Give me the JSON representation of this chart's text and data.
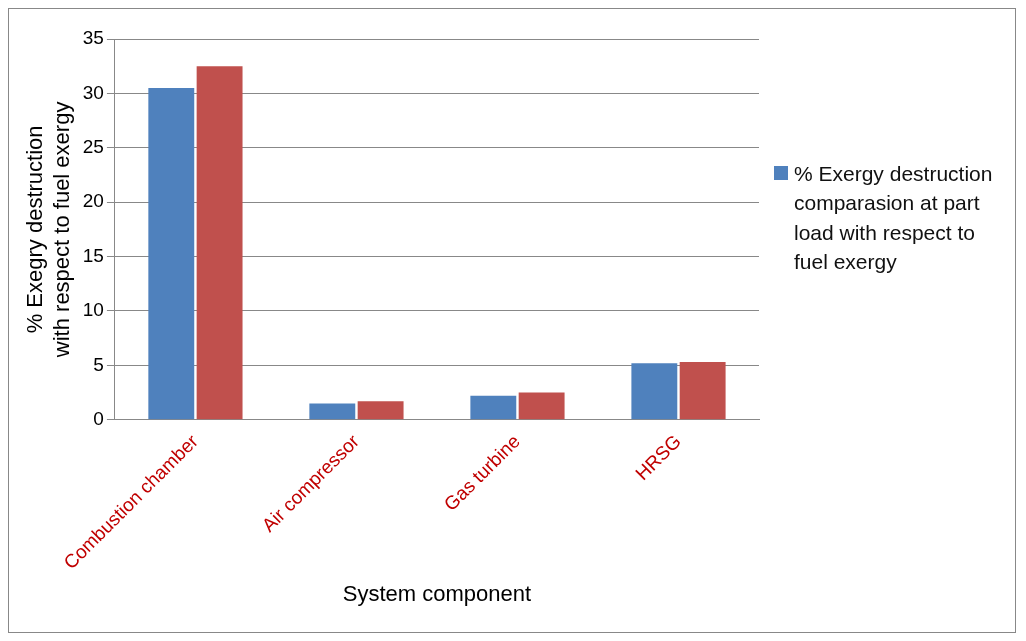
{
  "chart_data": {
    "type": "bar",
    "xlabel": "System component",
    "ylabel": "% Exegry destruction with respect to fuel exergy",
    "categories": [
      "Combustion chamber",
      "Air compressor",
      "Gas turbine",
      "HRSG"
    ],
    "series": [
      {
        "name": "% Exergy destruction comparasion at part load with respect to fuel exergy",
        "color": "#4f81bd",
        "values": [
          30.5,
          1.5,
          2.2,
          5.2
        ]
      },
      {
        "color": "#c0504d",
        "values": [
          32.5,
          1.7,
          2.5,
          5.3
        ]
      }
    ],
    "ylim": [
      0,
      35
    ],
    "yticks": [
      0,
      5,
      10,
      15,
      20,
      25,
      30,
      35
    ],
    "grid": "y",
    "legend": "right"
  }
}
